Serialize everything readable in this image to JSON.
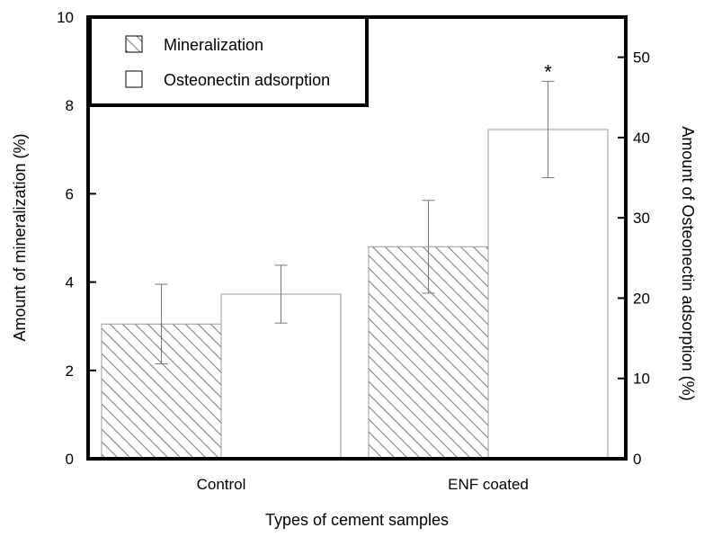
{
  "chart_data": {
    "type": "bar",
    "title": "",
    "xlabel": "Types of cement samples",
    "ylabel": "Amount of mineralization (%)",
    "y2label": "Amount of Osteonectin adsorption (%)",
    "categories": [
      "Control",
      "ENF coated"
    ],
    "ylim": [
      0,
      10
    ],
    "y2lim": [
      0,
      55
    ],
    "y_ticks": [
      "0",
      "2",
      "4",
      "6",
      "8",
      "10"
    ],
    "y2_ticks": [
      "0",
      "10",
      "20",
      "30",
      "40",
      "50"
    ],
    "series": [
      {
        "name": "Mineralization",
        "axis": "left",
        "pattern": "hatched",
        "values": [
          3.05,
          4.8
        ],
        "errors": [
          0.9,
          1.05
        ]
      },
      {
        "name": "Osteonectin adsorption",
        "axis": "right",
        "pattern": "open",
        "values": [
          20.5,
          41.0
        ],
        "errors": [
          3.6,
          6.0
        ]
      }
    ],
    "annotations": [
      {
        "text": "*",
        "category": "ENF coated",
        "series": "Osteonectin adsorption"
      }
    ],
    "legend_position": "top-left",
    "grid": false
  }
}
